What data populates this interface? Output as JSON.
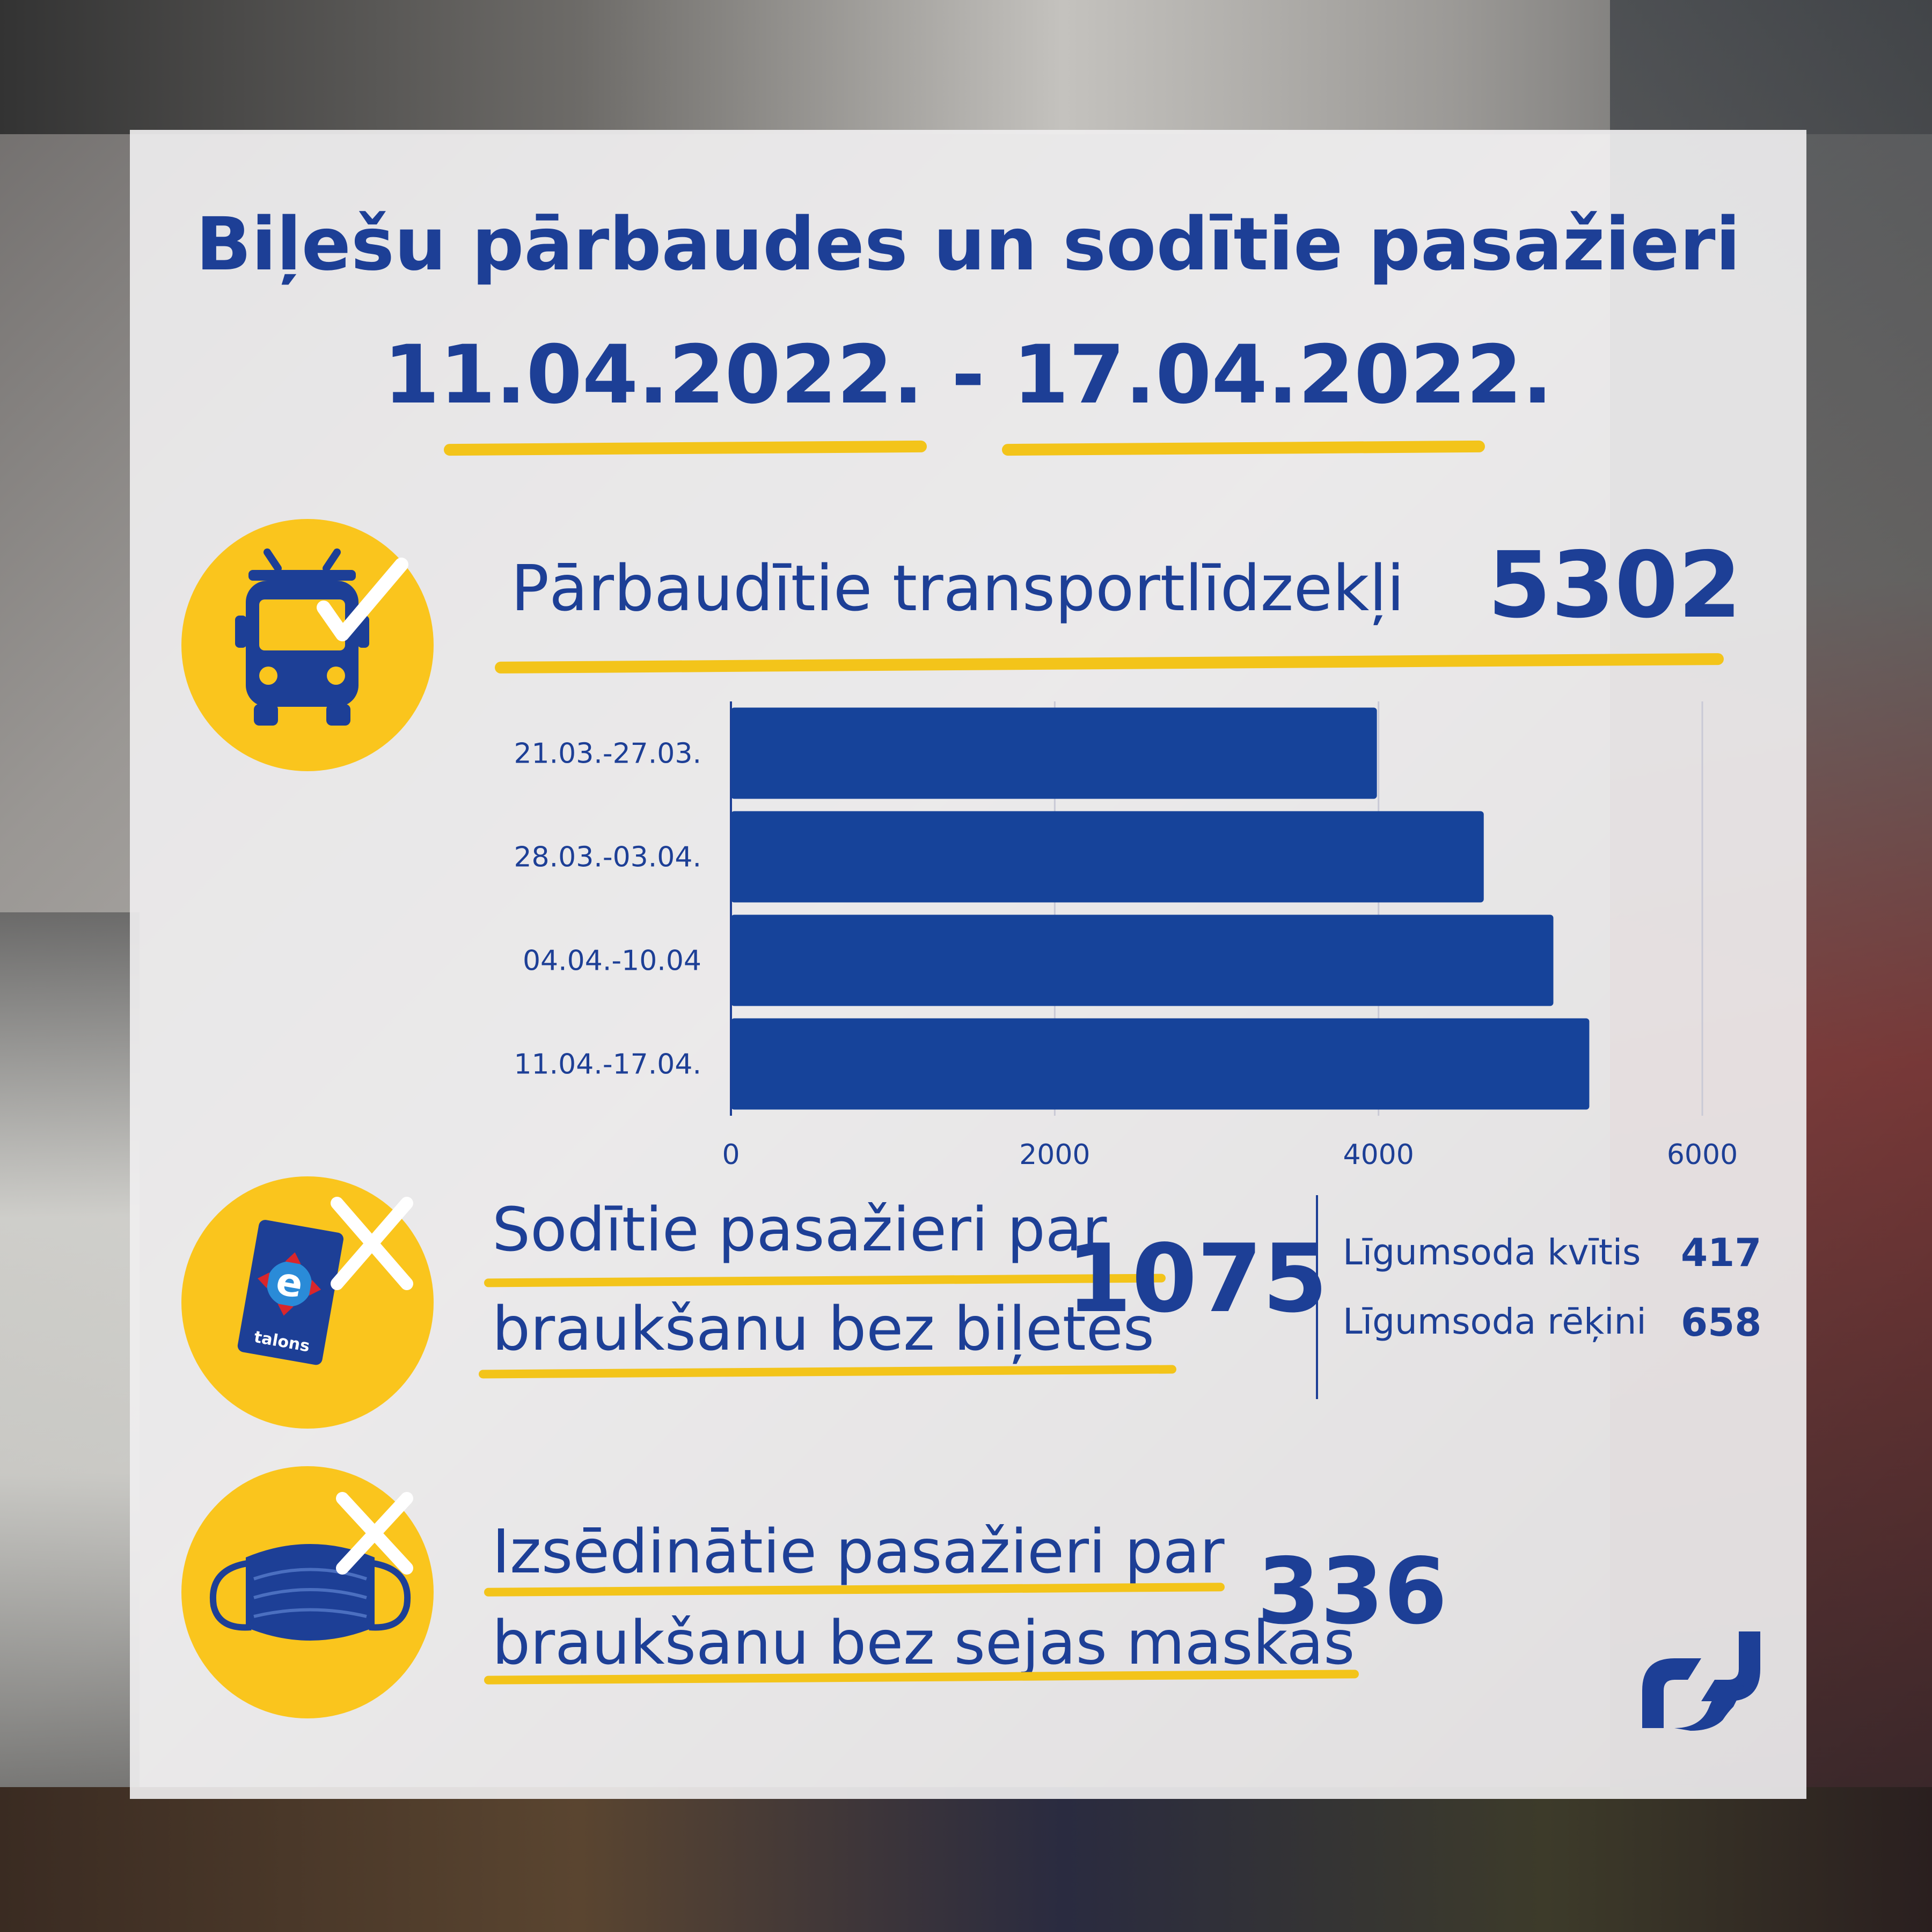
{
  "title": {
    "line1": "Biļešu pārbaudes un sodītie pasažieri",
    "line2": "11.04.2022. - 17.04.2022."
  },
  "vehicles": {
    "label": "Pārbaudītie transportlīdzekļi",
    "value": "5302",
    "icon": "bus-check-icon"
  },
  "chart_data": {
    "type": "bar",
    "orientation": "horizontal",
    "categories": [
      "21.03.-27.03.",
      "28.03.-03.04.",
      "04.04.-10.04",
      "11.04.-17.04."
    ],
    "values": [
      3990,
      4650,
      5080,
      5302
    ],
    "xlim": [
      0,
      6000
    ],
    "xticks": [
      "0",
      "2000",
      "4000",
      "6000"
    ],
    "grid": true,
    "bar_color": "#16439a"
  },
  "fined": {
    "label_line1": "Sodītie pasažieri par",
    "label_line2": "braukšanu bez biļetes",
    "value": "1075",
    "icon": "etalons-card-x-icon",
    "card_text": "talons",
    "breakdown": [
      {
        "label": "Līgumsoda kvītis",
        "value": "417"
      },
      {
        "label": "Līgumsoda rēķini",
        "value": "658"
      }
    ]
  },
  "mask": {
    "label_line1": "Izsēdinātie pasažieri par",
    "label_line2": "braukšanu bez sejas maskas",
    "value": "336",
    "icon": "face-mask-x-icon"
  },
  "logo": "rigas-satiksme-logo",
  "colors": {
    "primary": "#1d3f96",
    "accent": "#fac51d",
    "panel": "#f0eff0"
  }
}
